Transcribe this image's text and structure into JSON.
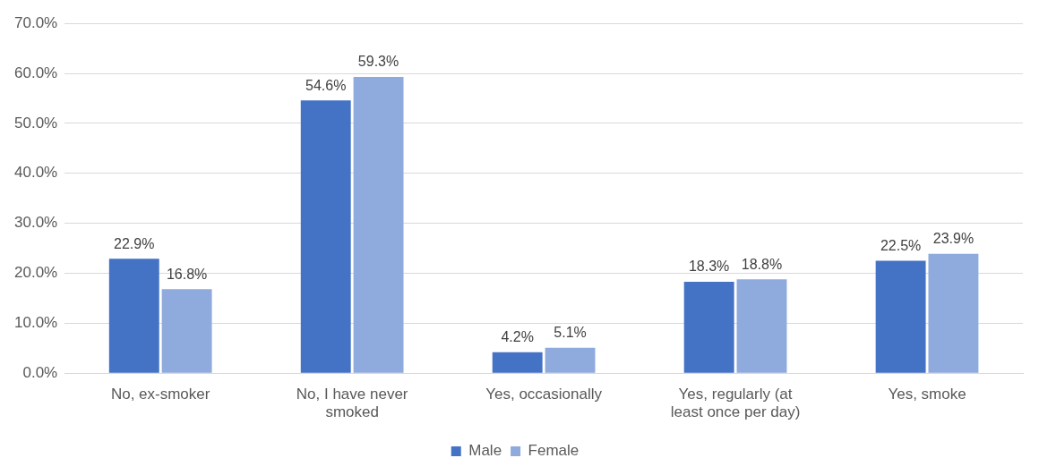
{
  "chart_data": {
    "type": "bar",
    "categories": [
      "No, ex-smoker",
      "No, I have never smoked",
      "Yes, occasionally",
      "Yes, regularly (at least once per day)",
      "Yes, smoke"
    ],
    "series": [
      {
        "name": "Male",
        "color": "#4472c4",
        "values": [
          22.9,
          54.6,
          4.2,
          18.3,
          22.5
        ],
        "value_labels": [
          "22.9%",
          "54.6%",
          "4.2%",
          "18.3%",
          "22.5%"
        ]
      },
      {
        "name": "Female",
        "color": "#8faadc",
        "values": [
          16.8,
          59.3,
          5.1,
          18.8,
          23.9
        ],
        "value_labels": [
          "16.8%",
          "59.3%",
          "5.1%",
          "18.8%",
          "23.9%"
        ]
      }
    ],
    "ylim": [
      0,
      70
    ],
    "yticks": [
      {
        "value": 0,
        "label": "0.0%"
      },
      {
        "value": 10,
        "label": "10.0%"
      },
      {
        "value": 20,
        "label": "20.0%"
      },
      {
        "value": 30,
        "label": "30.0%"
      },
      {
        "value": 40,
        "label": "40.0%"
      },
      {
        "value": 50,
        "label": "50.0%"
      },
      {
        "value": 60,
        "label": "60.0%"
      },
      {
        "value": 70,
        "label": "70.0%"
      }
    ],
    "grid": "y",
    "legend": "bottom"
  }
}
